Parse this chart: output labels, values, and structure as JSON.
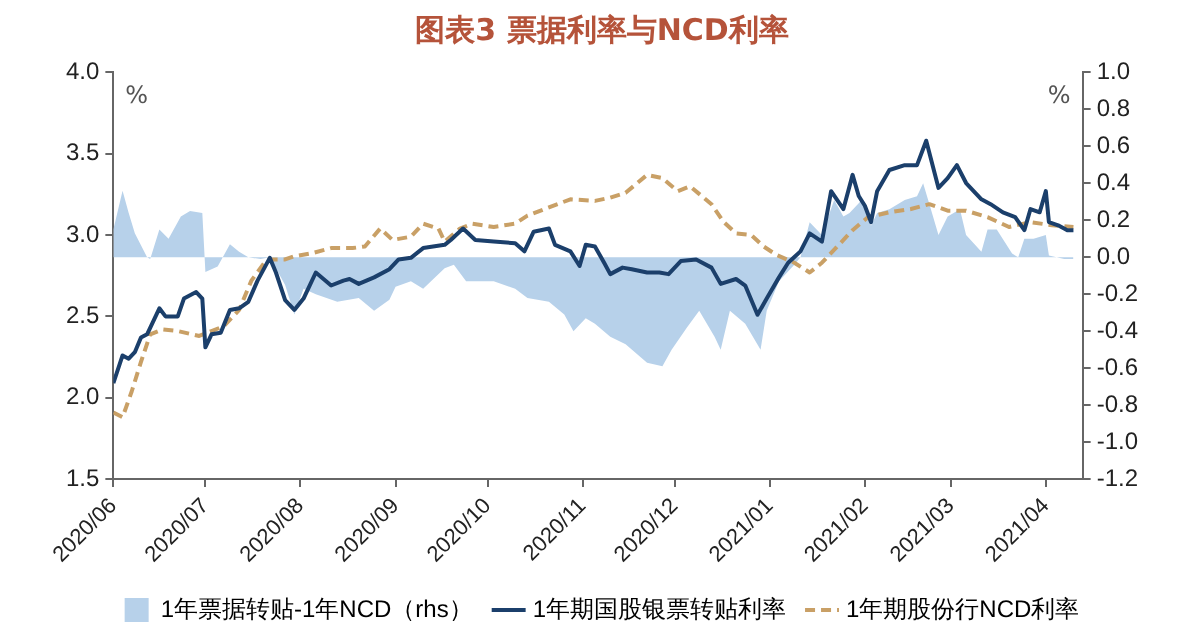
{
  "chart_data": {
    "type": "line",
    "title": "图表3 票据利率与NCD利率",
    "ylabel": "%",
    "y2label": "%",
    "xlim": [
      "2020-06-01",
      "2021-04-13"
    ],
    "xticks": [
      {
        "value": "2020-06-01",
        "label": "2020/06"
      },
      {
        "value": "2020-07-01",
        "label": "2020/07"
      },
      {
        "value": "2020-08-01",
        "label": "2020/08"
      },
      {
        "value": "2020-09-01",
        "label": "2020/09"
      },
      {
        "value": "2020-10-01",
        "label": "2020/10"
      },
      {
        "value": "2020-11-01",
        "label": "2020/11"
      },
      {
        "value": "2020-12-01",
        "label": "2020/12"
      },
      {
        "value": "2021-01-01",
        "label": "2021/01"
      },
      {
        "value": "2021-02-01",
        "label": "2021/02"
      },
      {
        "value": "2021-03-01",
        "label": "2021/03"
      },
      {
        "value": "2021-04-01",
        "label": "2021/04"
      }
    ],
    "ylim": [
      1.5,
      4.0
    ],
    "yticks": [
      {
        "value": 1.5,
        "label": "1.5"
      },
      {
        "value": 2,
        "label": "2.0"
      },
      {
        "value": 2.5,
        "label": "2.5"
      },
      {
        "value": 3,
        "label": "3.0"
      },
      {
        "value": 3.5,
        "label": "3.5"
      },
      {
        "value": 4,
        "label": "4.0"
      }
    ],
    "y2lim": [
      -1.2,
      1.0
    ],
    "y2ticks": [
      {
        "value": -1.2,
        "label": "-1.2"
      },
      {
        "value": -1,
        "label": "-1.0"
      },
      {
        "value": -0.8,
        "label": "-0.8"
      },
      {
        "value": -0.6,
        "label": "-0.6"
      },
      {
        "value": -0.4,
        "label": "-0.4"
      },
      {
        "value": -0.2,
        "label": "-0.2"
      },
      {
        "value": 0,
        "label": "0.0"
      },
      {
        "value": 0.2,
        "label": "0.2"
      },
      {
        "value": 0.4,
        "label": "0.4"
      },
      {
        "value": 0.6,
        "label": "0.6"
      },
      {
        "value": 0.8,
        "label": "0.8"
      },
      {
        "value": 1,
        "label": "1.0"
      }
    ],
    "grid": false,
    "legend": "bottom",
    "marker": "none",
    "series": [
      {
        "name": "1年票据转贴-1年NCD（rhs）",
        "type": "area",
        "axis": "y2",
        "color": "#b7d1ea",
        "x": [
          "2020-06-01",
          "2020-06-04",
          "2020-06-06",
          "2020-06-08",
          "2020-06-12",
          "2020-06-13",
          "2020-06-16",
          "2020-06-19",
          "2020-06-23",
          "2020-06-26",
          "2020-06-30",
          "2020-07-01",
          "2020-07-05",
          "2020-07-09",
          "2020-07-12",
          "2020-07-15",
          "2020-07-19",
          "2020-07-22",
          "2020-07-27",
          "2020-07-30",
          "2020-08-02",
          "2020-08-06",
          "2020-08-13",
          "2020-08-20",
          "2020-08-25",
          "2020-08-30",
          "2020-09-01",
          "2020-09-06",
          "2020-09-10",
          "2020-09-17",
          "2020-09-20",
          "2020-09-24",
          "2020-10-03",
          "2020-10-10",
          "2020-10-14",
          "2020-10-21",
          "2020-10-26",
          "2020-10-29",
          "2020-11-02",
          "2020-11-05",
          "2020-11-10",
          "2020-11-15",
          "2020-11-22",
          "2020-11-27",
          "2020-11-30",
          "2020-12-05",
          "2020-12-09",
          "2020-12-14",
          "2020-12-16",
          "2020-12-19",
          "2020-12-24",
          "2020-12-29",
          "2020-12-31",
          "2021-01-04",
          "2021-01-09",
          "2021-01-11",
          "2021-01-14",
          "2021-01-18",
          "2021-01-22",
          "2021-01-25",
          "2021-01-27",
          "2021-01-31",
          "2021-02-03",
          "2021-02-05",
          "2021-02-09",
          "2021-02-14",
          "2021-02-18",
          "2021-02-20",
          "2021-02-22",
          "2021-02-25",
          "2021-02-28",
          "2021-03-04",
          "2021-03-06",
          "2021-03-11",
          "2021-03-13",
          "2021-03-16",
          "2021-03-21",
          "2021-03-23",
          "2021-03-25",
          "2021-03-28",
          "2021-04-01",
          "2021-04-02",
          "2021-04-07",
          "2021-04-10"
        ],
        "values": [
          0.15,
          0.36,
          0.24,
          0.13,
          0.0,
          -0.01,
          0.15,
          0.1,
          0.22,
          0.25,
          0.24,
          -0.08,
          -0.05,
          0.07,
          0.03,
          0.0,
          -0.01,
          0.0,
          -0.15,
          -0.31,
          -0.17,
          -0.2,
          -0.24,
          -0.22,
          -0.29,
          -0.23,
          -0.16,
          -0.13,
          -0.17,
          -0.06,
          -0.04,
          -0.13,
          -0.13,
          -0.17,
          -0.22,
          -0.24,
          -0.31,
          -0.4,
          -0.33,
          -0.36,
          -0.43,
          -0.47,
          -0.57,
          -0.59,
          -0.5,
          -0.38,
          -0.29,
          -0.43,
          -0.5,
          -0.29,
          -0.36,
          -0.5,
          -0.29,
          -0.13,
          -0.04,
          0.0,
          0.19,
          0.12,
          0.31,
          0.22,
          0.24,
          0.31,
          0.17,
          0.24,
          0.26,
          0.31,
          0.33,
          0.4,
          0.29,
          0.12,
          0.22,
          0.26,
          0.12,
          0.03,
          0.15,
          0.15,
          0.02,
          0.0,
          0.1,
          0.1,
          0.12,
          0.01,
          -0.01,
          -0.01
        ]
      },
      {
        "name": "1年期国股银票转贴利率",
        "type": "line",
        "line_style": "solid",
        "color": "#1b3f6b",
        "x": [
          "2020-06-01",
          "2020-06-04",
          "2020-06-06",
          "2020-06-08",
          "2020-06-10",
          "2020-06-12",
          "2020-06-16",
          "2020-06-18",
          "2020-06-22",
          "2020-06-24",
          "2020-06-28",
          "2020-06-30",
          "2020-07-01",
          "2020-07-03",
          "2020-07-06",
          "2020-07-09",
          "2020-07-12",
          "2020-07-15",
          "2020-07-18",
          "2020-07-22",
          "2020-07-24",
          "2020-07-27",
          "2020-07-30",
          "2020-08-02",
          "2020-08-06",
          "2020-08-11",
          "2020-08-15",
          "2020-08-17",
          "2020-08-20",
          "2020-08-25",
          "2020-08-30",
          "2020-09-02",
          "2020-09-06",
          "2020-09-10",
          "2020-09-17",
          "2020-09-19",
          "2020-09-23",
          "2020-09-27",
          "2020-10-03",
          "2020-10-10",
          "2020-10-13",
          "2020-10-16",
          "2020-10-21",
          "2020-10-23",
          "2020-10-28",
          "2020-10-31",
          "2020-11-02",
          "2020-11-05",
          "2020-11-08",
          "2020-11-10",
          "2020-11-14",
          "2020-11-17",
          "2020-11-22",
          "2020-11-26",
          "2020-11-29",
          "2020-12-03",
          "2020-12-08",
          "2020-12-13",
          "2020-12-16",
          "2020-12-21",
          "2020-12-24",
          "2020-12-28",
          "2020-12-31",
          "2021-01-04",
          "2021-01-07",
          "2021-01-11",
          "2021-01-14",
          "2021-01-18",
          "2021-01-21",
          "2021-01-25",
          "2021-01-28",
          "2021-01-30",
          "2021-02-01",
          "2021-02-03",
          "2021-02-05",
          "2021-02-09",
          "2021-02-14",
          "2021-02-18",
          "2021-02-21",
          "2021-02-25",
          "2021-02-28",
          "2021-03-03",
          "2021-03-06",
          "2021-03-11",
          "2021-03-14",
          "2021-03-18",
          "2021-03-22",
          "2021-03-25",
          "2021-03-27",
          "2021-03-30",
          "2021-04-01",
          "2021-04-02",
          "2021-04-05",
          "2021-04-08",
          "2021-04-10"
        ],
        "values": [
          2.09,
          2.26,
          2.24,
          2.28,
          2.37,
          2.39,
          2.55,
          2.5,
          2.5,
          2.61,
          2.65,
          2.61,
          2.31,
          2.39,
          2.4,
          2.54,
          2.55,
          2.59,
          2.72,
          2.86,
          2.77,
          2.6,
          2.54,
          2.61,
          2.77,
          2.69,
          2.72,
          2.73,
          2.7,
          2.74,
          2.79,
          2.85,
          2.86,
          2.92,
          2.94,
          2.97,
          3.04,
          2.97,
          2.96,
          2.95,
          2.9,
          3.02,
          3.04,
          2.94,
          2.9,
          2.81,
          2.94,
          2.93,
          2.83,
          2.76,
          2.8,
          2.79,
          2.77,
          2.77,
          2.76,
          2.84,
          2.85,
          2.8,
          2.7,
          2.73,
          2.69,
          2.51,
          2.61,
          2.74,
          2.83,
          2.9,
          3.01,
          2.96,
          3.27,
          3.16,
          3.37,
          3.24,
          3.18,
          3.08,
          3.27,
          3.4,
          3.43,
          3.43,
          3.58,
          3.29,
          3.35,
          3.43,
          3.32,
          3.22,
          3.19,
          3.14,
          3.11,
          3.03,
          3.16,
          3.14,
          3.27,
          3.08,
          3.06,
          3.03,
          3.03
        ]
      },
      {
        "name": "1年期股份行NCD利率",
        "type": "line",
        "line_style": "dashed",
        "color": "#c9a066",
        "x": [
          "2020-06-01",
          "2020-06-04",
          "2020-06-07",
          "2020-06-10",
          "2020-06-13",
          "2020-06-17",
          "2020-06-22",
          "2020-06-29",
          "2020-07-03",
          "2020-07-07",
          "2020-07-12",
          "2020-07-16",
          "2020-07-21",
          "2020-07-27",
          "2020-07-30",
          "2020-08-05",
          "2020-08-11",
          "2020-08-18",
          "2020-08-22",
          "2020-08-27",
          "2020-08-31",
          "2020-09-06",
          "2020-09-10",
          "2020-09-15",
          "2020-09-17",
          "2020-09-22",
          "2020-09-26",
          "2020-10-03",
          "2020-10-10",
          "2020-10-14",
          "2020-10-21",
          "2020-10-28",
          "2020-11-05",
          "2020-11-10",
          "2020-11-15",
          "2020-11-22",
          "2020-11-27",
          "2020-12-02",
          "2020-12-06",
          "2020-12-13",
          "2020-12-17",
          "2020-12-21",
          "2020-12-26",
          "2020-12-30",
          "2021-01-03",
          "2021-01-09",
          "2021-01-14",
          "2021-01-18",
          "2021-01-23",
          "2021-01-28",
          "2021-02-02",
          "2021-02-09",
          "2021-02-16",
          "2021-02-22",
          "2021-02-28",
          "2021-03-06",
          "2021-03-13",
          "2021-03-20",
          "2021-03-27",
          "2021-04-03",
          "2021-04-10"
        ],
        "values": [
          1.91,
          1.88,
          2.04,
          2.22,
          2.39,
          2.42,
          2.41,
          2.38,
          2.41,
          2.44,
          2.54,
          2.72,
          2.85,
          2.85,
          2.87,
          2.89,
          2.92,
          2.92,
          2.93,
          3.04,
          2.97,
          2.99,
          3.07,
          3.04,
          2.96,
          3.04,
          3.07,
          3.05,
          3.07,
          3.12,
          3.17,
          3.22,
          3.21,
          3.23,
          3.26,
          3.37,
          3.35,
          3.27,
          3.3,
          3.19,
          3.08,
          3.01,
          3.0,
          2.93,
          2.88,
          2.83,
          2.77,
          2.83,
          2.93,
          3.03,
          3.11,
          3.14,
          3.16,
          3.19,
          3.15,
          3.15,
          3.11,
          3.05,
          3.08,
          3.06,
          3.05
        ]
      }
    ]
  }
}
